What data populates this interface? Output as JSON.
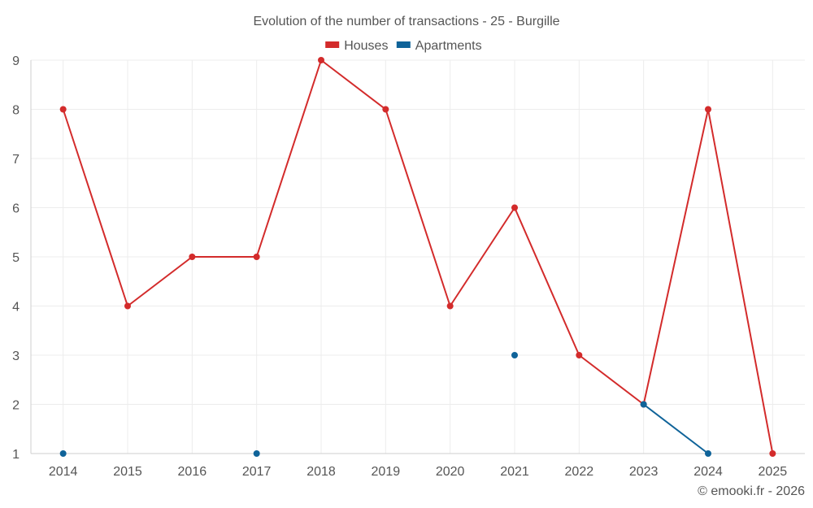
{
  "chart_data": {
    "type": "line",
    "title": "Evolution of the number of transactions - 25 - Burgille",
    "x": [
      2014,
      2015,
      2016,
      2017,
      2018,
      2019,
      2020,
      2021,
      2022,
      2023,
      2024,
      2025
    ],
    "ylim": [
      1,
      9
    ],
    "yticks": [
      1,
      2,
      3,
      4,
      5,
      6,
      7,
      8,
      9
    ],
    "grid": true,
    "legend_position": "top-center",
    "series": [
      {
        "name": "Houses",
        "color": "#d32b2b",
        "values": [
          8,
          4,
          5,
          5,
          9,
          8,
          4,
          6,
          3,
          2,
          8,
          1
        ]
      },
      {
        "name": "Apartments",
        "color": "#0f6399",
        "values": [
          1,
          null,
          null,
          1,
          null,
          null,
          null,
          3,
          null,
          2,
          1,
          null
        ]
      }
    ]
  },
  "credit": "© emooki.fr - 2026"
}
